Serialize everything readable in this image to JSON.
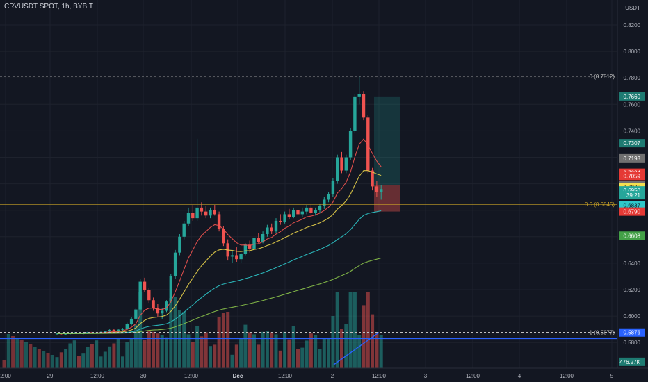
{
  "header": {
    "symbol": "CRVUSDT SPOT, 1h, BYBIT",
    "currency": "USDT"
  },
  "colors": {
    "background": "#131722",
    "grid": "#1e222d",
    "up": "#26a69a",
    "down": "#ef5350",
    "ema_fast": "#ef5350",
    "ema_mid": "#e8d14a",
    "ema_slow": "#2ec7c9",
    "ema_long": "#8bc34a",
    "fib": "#c0c0c0",
    "fib_half": "#c9a227",
    "blue_line": "#2962ff",
    "text": "#b2b5be"
  },
  "chart_data": {
    "type": "candlestick",
    "x_ticks": [
      "2:00",
      "29",
      "12:00",
      "30",
      "12:00",
      "Dec",
      "12:00",
      "2",
      "12:00",
      "3",
      "12:00",
      "4",
      "12:00",
      "5"
    ],
    "y_ticks": [
      "0.8200",
      "0.8000",
      "0.7800",
      "0.7600",
      "0.7400",
      "0.7200",
      "0.7000",
      "0.6800",
      "0.6600",
      "0.6400",
      "0.6200",
      "0.6000",
      "0.5800"
    ],
    "candles": [
      [
        0.5866,
        0.5874,
        0.5858,
        0.5868
      ],
      [
        0.5868,
        0.5872,
        0.586,
        0.5864
      ],
      [
        0.5864,
        0.587,
        0.5856,
        0.5866
      ],
      [
        0.5866,
        0.5876,
        0.586,
        0.5872
      ],
      [
        0.5872,
        0.588,
        0.5866,
        0.5874
      ],
      [
        0.5874,
        0.5878,
        0.5864,
        0.5868
      ],
      [
        0.5868,
        0.5874,
        0.586,
        0.587
      ],
      [
        0.587,
        0.5882,
        0.5864,
        0.5878
      ],
      [
        0.5878,
        0.5885,
        0.587,
        0.5874
      ],
      [
        0.5874,
        0.588,
        0.5866,
        0.5876
      ],
      [
        0.5876,
        0.5884,
        0.587,
        0.588
      ],
      [
        0.588,
        0.589,
        0.5874,
        0.5886
      ],
      [
        0.5886,
        0.59,
        0.588,
        0.5896
      ],
      [
        0.5896,
        0.5905,
        0.5885,
        0.589
      ],
      [
        0.589,
        0.59,
        0.588,
        0.5898
      ],
      [
        0.5898,
        0.591,
        0.589,
        0.5902
      ],
      [
        0.5902,
        0.595,
        0.5895,
        0.594
      ],
      [
        0.594,
        0.599,
        0.593,
        0.598
      ],
      [
        0.598,
        0.606,
        0.597,
        0.605
      ],
      [
        0.605,
        0.628,
        0.604,
        0.626
      ],
      [
        0.626,
        0.629,
        0.618,
        0.62
      ],
      [
        0.62,
        0.621,
        0.61,
        0.612
      ],
      [
        0.612,
        0.614,
        0.604,
        0.606
      ],
      [
        0.606,
        0.609,
        0.599,
        0.602
      ],
      [
        0.602,
        0.606,
        0.598,
        0.604
      ],
      [
        0.604,
        0.612,
        0.603,
        0.611
      ],
      [
        0.611,
        0.632,
        0.61,
        0.63
      ],
      [
        0.63,
        0.65,
        0.628,
        0.648
      ],
      [
        0.648,
        0.662,
        0.646,
        0.66
      ],
      [
        0.66,
        0.672,
        0.658,
        0.67
      ],
      [
        0.67,
        0.682,
        0.668,
        0.678
      ],
      [
        0.678,
        0.684,
        0.672,
        0.674
      ],
      [
        0.674,
        0.734,
        0.672,
        0.682
      ],
      [
        0.682,
        0.686,
        0.676,
        0.679
      ],
      [
        0.679,
        0.683,
        0.674,
        0.676
      ],
      [
        0.676,
        0.682,
        0.674,
        0.68
      ],
      [
        0.68,
        0.684,
        0.676,
        0.677
      ],
      [
        0.677,
        0.679,
        0.664,
        0.666
      ],
      [
        0.666,
        0.668,
        0.653,
        0.655
      ],
      [
        0.655,
        0.658,
        0.642,
        0.645
      ],
      [
        0.645,
        0.65,
        0.64,
        0.646
      ],
      [
        0.646,
        0.652,
        0.641,
        0.643
      ],
      [
        0.643,
        0.648,
        0.64,
        0.647
      ],
      [
        0.647,
        0.655,
        0.646,
        0.654
      ],
      [
        0.654,
        0.657,
        0.648,
        0.651
      ],
      [
        0.651,
        0.66,
        0.65,
        0.659
      ],
      [
        0.659,
        0.663,
        0.655,
        0.656
      ],
      [
        0.656,
        0.664,
        0.655,
        0.662
      ],
      [
        0.662,
        0.669,
        0.66,
        0.667
      ],
      [
        0.667,
        0.67,
        0.662,
        0.664
      ],
      [
        0.664,
        0.674,
        0.663,
        0.672
      ],
      [
        0.672,
        0.677,
        0.669,
        0.671
      ],
      [
        0.671,
        0.679,
        0.67,
        0.677
      ],
      [
        0.677,
        0.681,
        0.673,
        0.675
      ],
      [
        0.675,
        0.682,
        0.674,
        0.68
      ],
      [
        0.68,
        0.683,
        0.676,
        0.677
      ],
      [
        0.677,
        0.682,
        0.675,
        0.679
      ],
      [
        0.679,
        0.684,
        0.677,
        0.682
      ],
      [
        0.682,
        0.685,
        0.677,
        0.678
      ],
      [
        0.678,
        0.682,
        0.676,
        0.68
      ],
      [
        0.68,
        0.685,
        0.678,
        0.683
      ],
      [
        0.683,
        0.69,
        0.681,
        0.688
      ],
      [
        0.688,
        0.694,
        0.686,
        0.692
      ],
      [
        0.692,
        0.704,
        0.69,
        0.702
      ],
      [
        0.702,
        0.722,
        0.7,
        0.72
      ],
      [
        0.72,
        0.724,
        0.708,
        0.71
      ],
      [
        0.71,
        0.722,
        0.708,
        0.72
      ],
      [
        0.72,
        0.742,
        0.718,
        0.74
      ],
      [
        0.74,
        0.768,
        0.738,
        0.766
      ],
      [
        0.766,
        0.781,
        0.76,
        0.768
      ],
      [
        0.768,
        0.77,
        0.748,
        0.75
      ],
      [
        0.75,
        0.752,
        0.708,
        0.71
      ],
      [
        0.71,
        0.712,
        0.695,
        0.698
      ],
      [
        0.698,
        0.702,
        0.69,
        0.694
      ],
      [
        0.694,
        0.699,
        0.688,
        0.696
      ]
    ],
    "price_labels": [
      {
        "price": 0.766,
        "text": "0.7660",
        "bg": "#1e7b72",
        "fg": "#ffffff"
      },
      {
        "price": 0.7307,
        "text": "0.7307",
        "bg": "#1e7b72",
        "fg": "#ffffff"
      },
      {
        "price": 0.7193,
        "text": "0.7193",
        "bg": "#707070",
        "fg": "#ffffff"
      },
      {
        "price": 0.7084,
        "text": "0.7084",
        "bg": "#e53935",
        "fg": "#ffffff"
      },
      {
        "price": 0.7059,
        "text": "0.7059",
        "bg": "#e53935",
        "fg": "#ffffff"
      },
      {
        "price": 0.6991,
        "text": "0.6991",
        "bg": "#707070",
        "fg": "#ffffff"
      },
      {
        "price": 0.6975,
        "text": "0.6975",
        "bg": "#f5e04f",
        "fg": "#131722"
      },
      {
        "price": 0.695,
        "text": "0.6950",
        "bg": "#26a69a",
        "fg": "#ffffff"
      },
      {
        "price": 0.6913,
        "text": "39:21",
        "bg": "#26a69a",
        "fg": "#ffffff"
      },
      {
        "price": 0.6837,
        "text": "0.6837",
        "bg": "#2ec7c9",
        "fg": "#131722"
      },
      {
        "price": 0.679,
        "text": "0.6790",
        "bg": "#e53935",
        "fg": "#ffffff"
      },
      {
        "price": 0.6608,
        "text": "0.6608",
        "bg": "#43a047",
        "fg": "#ffffff"
      },
      {
        "price": 0.5876,
        "text": "0.5876",
        "bg": "#2962ff",
        "fg": "#ffffff"
      },
      {
        "price": 0.5655,
        "text": "476.27K",
        "bg": "#1e7b72",
        "fg": "#ffffff"
      }
    ],
    "fib_levels": [
      {
        "price": 0.7812,
        "text": "0 (0.7812)"
      },
      {
        "price": 0.68448,
        "text": "0.5 (0.6845)"
      },
      {
        "price": 0.5877,
        "text": "1 (0.5877)"
      }
    ],
    "position": {
      "entry": 0.699,
      "target": 0.766,
      "stop": 0.679
    }
  }
}
